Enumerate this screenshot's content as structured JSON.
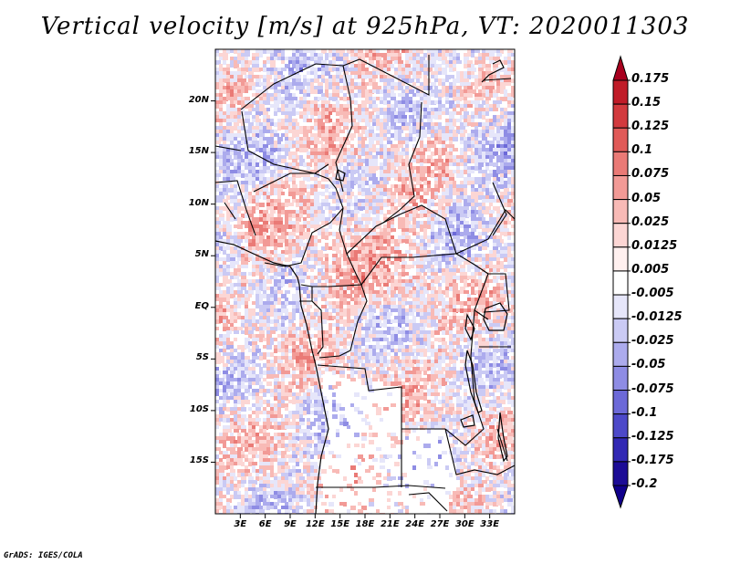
{
  "title": "Vertical velocity [m/s] at 925hPa, VT: 2020011303",
  "credit": "GrADS: IGES/COLA",
  "map": {
    "variable": "Vertical velocity",
    "units": "m/s",
    "level": "925hPa",
    "valid_time": "2020011303",
    "lon_range": [
      0,
      36
    ],
    "lat_range": [
      -20,
      25
    ],
    "x_ticks": [
      "3E",
      "6E",
      "9E",
      "12E",
      "15E",
      "18E",
      "21E",
      "24E",
      "27E",
      "30E",
      "33E"
    ],
    "x_tick_values": [
      3,
      6,
      9,
      12,
      15,
      18,
      21,
      24,
      27,
      30,
      33
    ],
    "y_ticks": [
      "20N",
      "15N",
      "10N",
      "5N",
      "EQ",
      "5S",
      "10S",
      "15S"
    ],
    "y_tick_values": [
      20,
      15,
      10,
      5,
      0,
      -5,
      -10,
      -15
    ]
  },
  "colorbar": {
    "labels": [
      "0.175",
      "0.15",
      "0.125",
      "0.1",
      "0.075",
      "0.05",
      "0.025",
      "0.0125",
      "0.005",
      "-0.005",
      "-0.0125",
      "-0.025",
      "-0.05",
      "-0.075",
      "-0.1",
      "-0.125",
      "-0.175",
      "-0.2"
    ],
    "colors": [
      "#a8001e",
      "#c01c28",
      "#d23a3e",
      "#e05a58",
      "#ea7a76",
      "#f29a96",
      "#f8bab6",
      "#fcd6d4",
      "#fff0ef",
      "#ffffff",
      "#e6e6fa",
      "#cacaf4",
      "#acabed",
      "#8e8ce4",
      "#6c69d8",
      "#4d49c9",
      "#3228b4",
      "#1c0c96",
      "#10008c"
    ],
    "top_arrow_color": "#a8001e",
    "bottom_arrow_color": "#10008c"
  }
}
